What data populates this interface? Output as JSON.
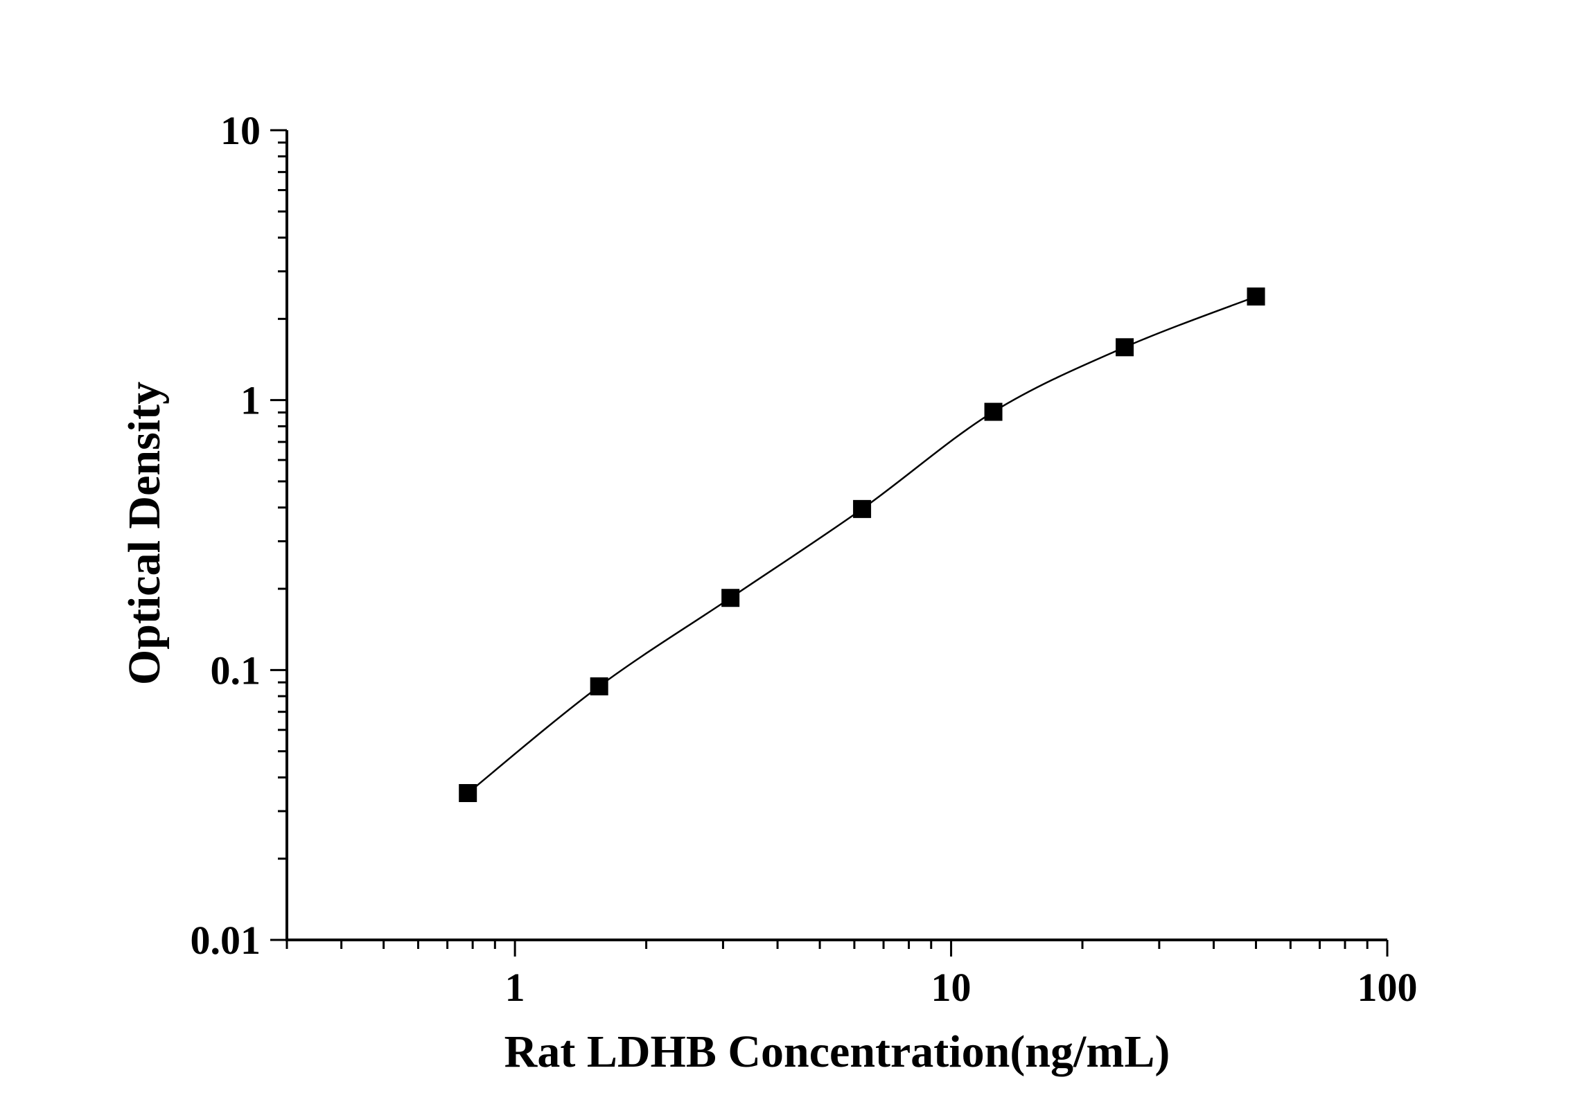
{
  "chart_data": {
    "type": "line",
    "xscale": "log",
    "yscale": "log",
    "xlabel": "Rat LDHB Concentration(ng/mL)",
    "ylabel": "Optical Density",
    "xlim": [
      0.3,
      100
    ],
    "ylim": [
      0.01,
      10
    ],
    "x_ticks": [
      1,
      10,
      100
    ],
    "x_tick_labels": [
      "1",
      "10",
      "100"
    ],
    "y_ticks": [
      0.01,
      0.1,
      1,
      10
    ],
    "y_tick_labels": [
      "0.01",
      "0.1",
      "1",
      "10"
    ],
    "grid": false,
    "legend": "none",
    "series": [
      {
        "marker": "square",
        "color": "#000000",
        "x": [
          0.78,
          1.56,
          3.12,
          6.25,
          12.5,
          25,
          50
        ],
        "y": [
          0.035,
          0.087,
          0.185,
          0.395,
          0.905,
          1.57,
          2.42
        ]
      }
    ]
  }
}
